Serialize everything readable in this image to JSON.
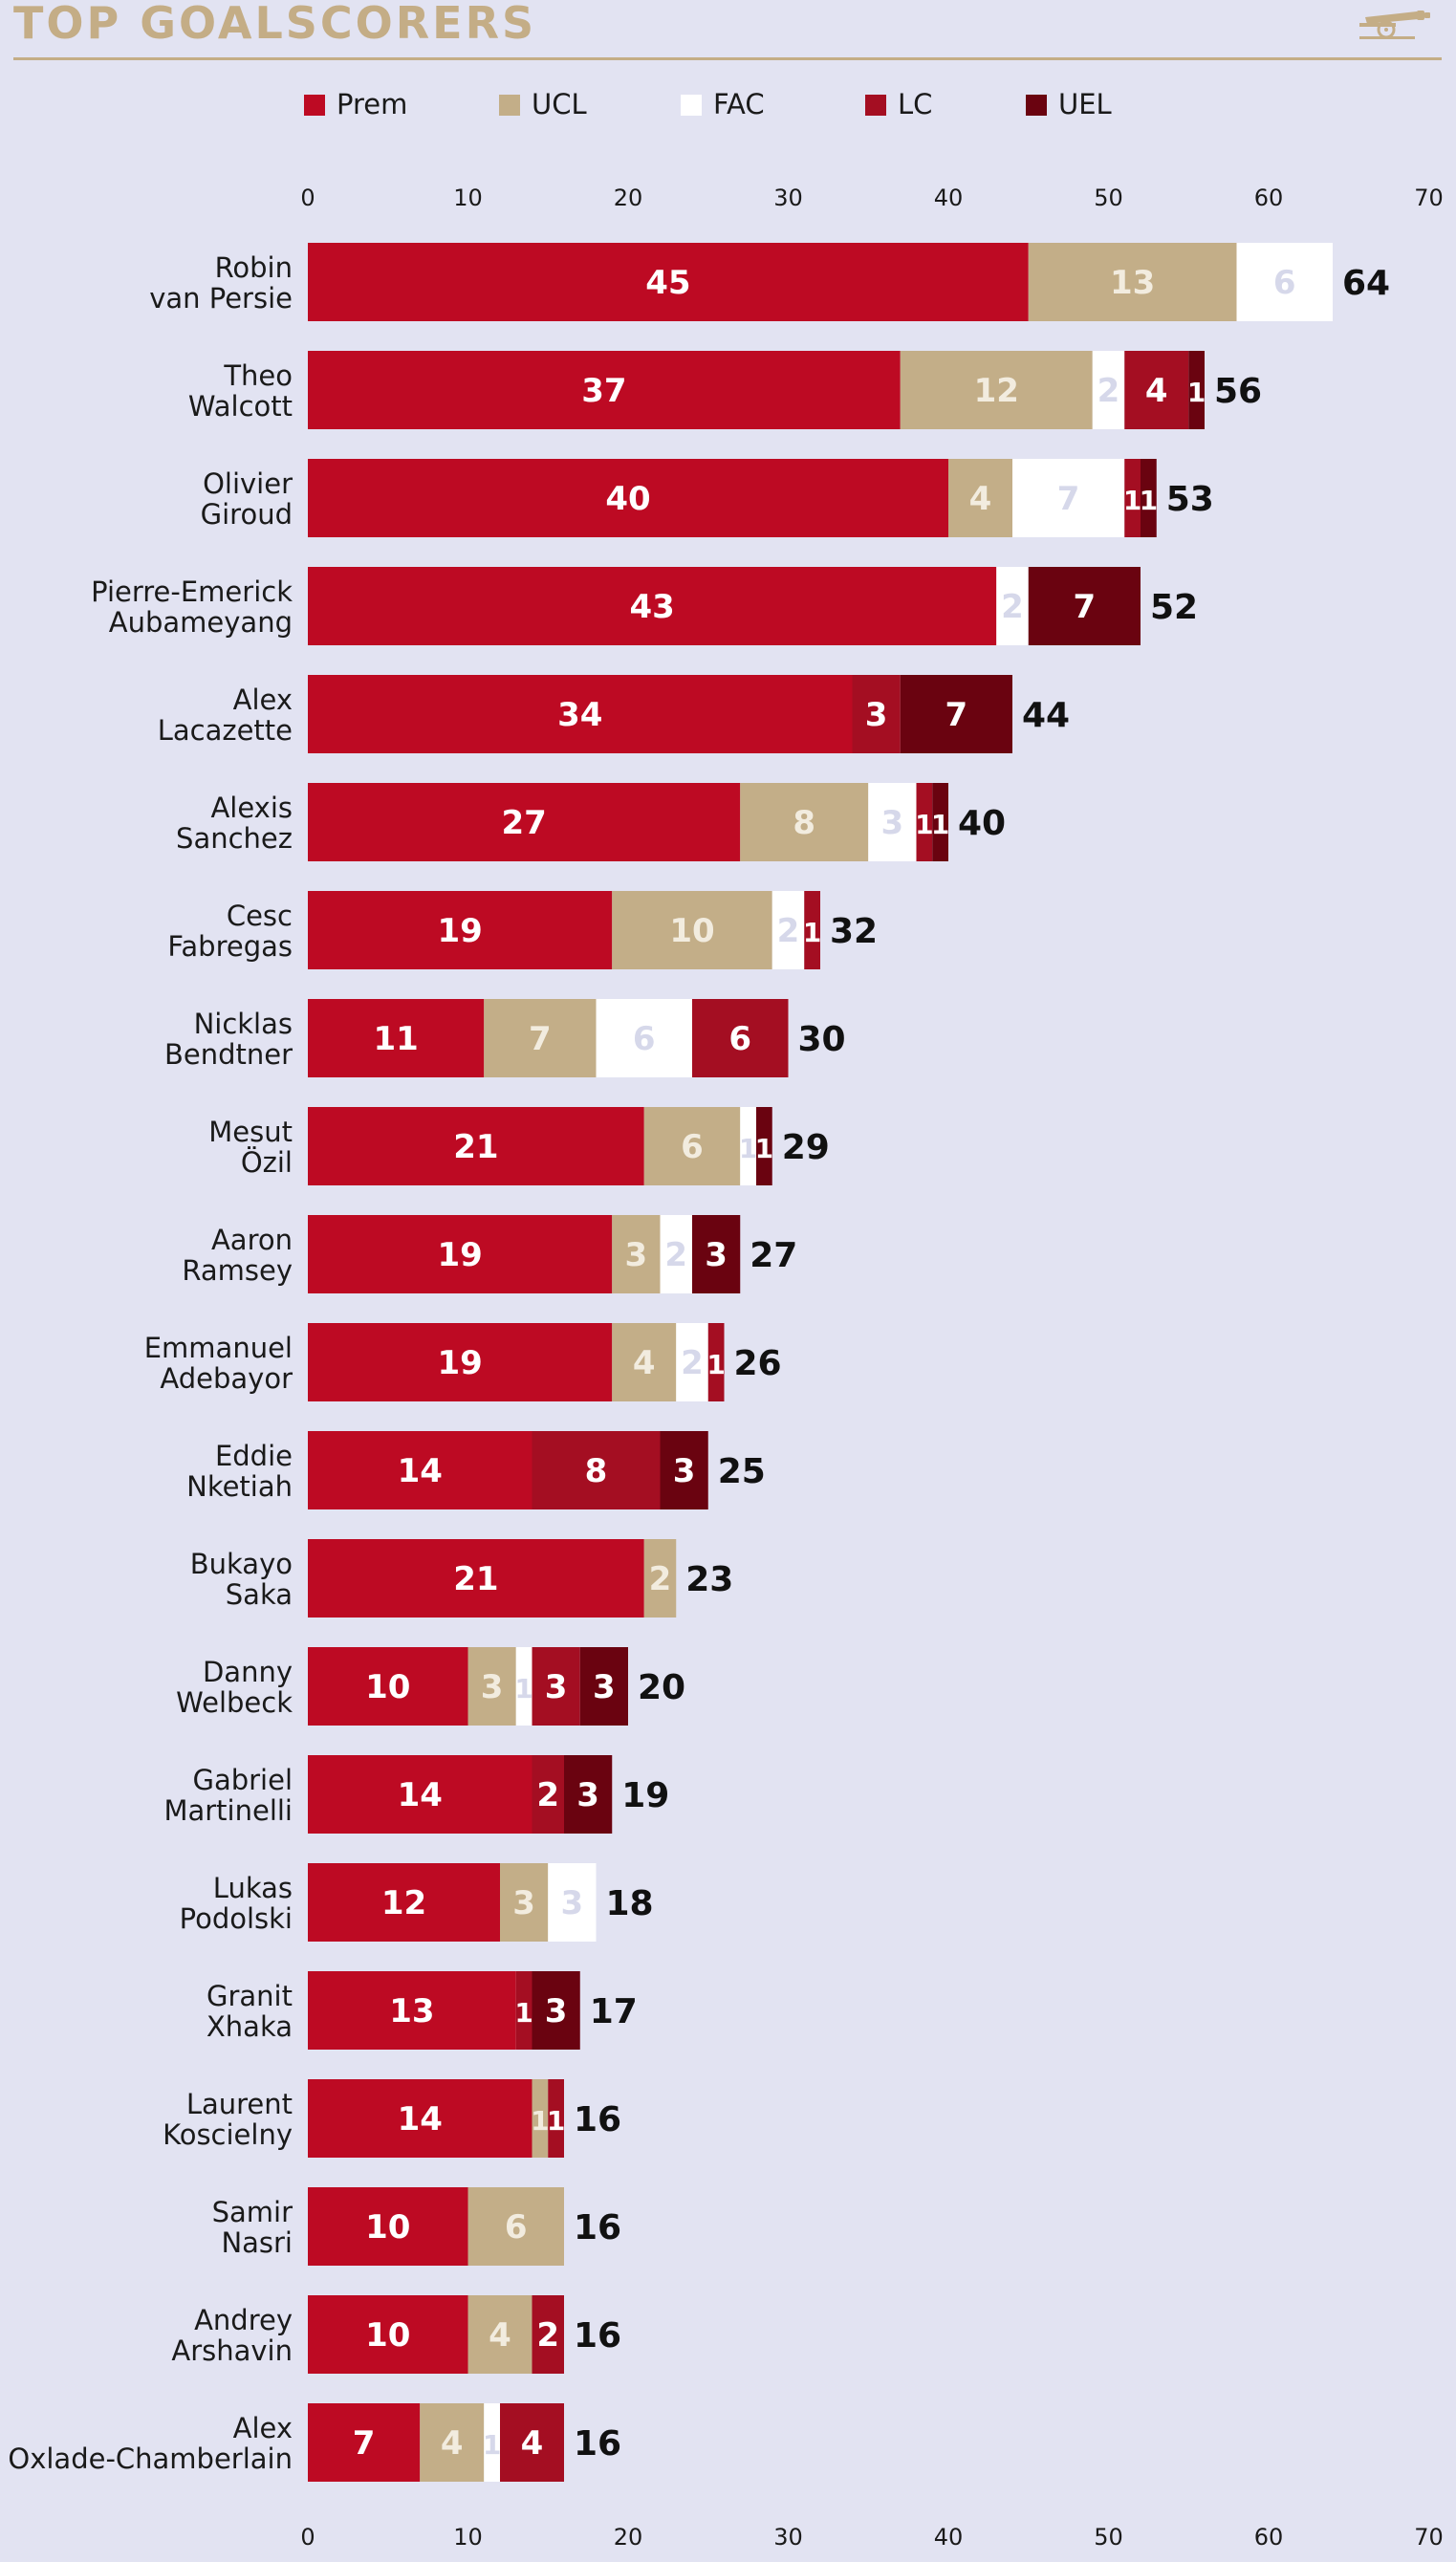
{
  "header": {
    "title": "TOP GOALSCORERS",
    "logo": "cannon-crest-icon"
  },
  "colors": {
    "Prem": "#bd0a23",
    "UCL": "#c3ae88",
    "FAC": "#ffffff",
    "LC": "#a40e22",
    "UEL": "#6a0310",
    "title": "#c4ad86",
    "background": "#e2e3f2"
  },
  "chart_data": {
    "type": "bar",
    "orientation": "horizontal",
    "stacked": true,
    "title": "TOP GOALSCORERS",
    "xlabel": "",
    "ylabel": "",
    "xlim": [
      0,
      70
    ],
    "xticks": [
      0,
      10,
      20,
      30,
      40,
      50,
      60,
      70
    ],
    "legend": {
      "placement": "top",
      "entries": [
        "Prem",
        "UCL",
        "FAC",
        "LC",
        "UEL"
      ]
    },
    "series_order": [
      "Prem",
      "UCL",
      "FAC",
      "LC",
      "UEL"
    ],
    "categories": [
      [
        "Robin",
        "van Persie"
      ],
      [
        "Theo",
        "Walcott"
      ],
      [
        "Olivier",
        "Giroud"
      ],
      [
        "Pierre-Emerick",
        "Aubameyang"
      ],
      [
        "Alex",
        "Lacazette"
      ],
      [
        "Alexis",
        "Sanchez"
      ],
      [
        "Cesc",
        "Fabregas"
      ],
      [
        "Nicklas",
        "Bendtner"
      ],
      [
        "Mesut",
        "Özil"
      ],
      [
        "Aaron",
        "Ramsey"
      ],
      [
        "Emmanuel",
        "Adebayor"
      ],
      [
        "Eddie",
        "Nketiah"
      ],
      [
        "Bukayo",
        "Saka"
      ],
      [
        "Danny",
        "Welbeck"
      ],
      [
        "Gabriel",
        "Martinelli"
      ],
      [
        "Lukas",
        "Podolski"
      ],
      [
        "Granit",
        "Xhaka"
      ],
      [
        "Laurent",
        "Koscielny"
      ],
      [
        "Samir",
        "Nasri"
      ],
      [
        "Andrey",
        "Arshavin"
      ],
      [
        "Alex",
        "Oxlade-Chamberlain"
      ]
    ],
    "series": [
      {
        "name": "Prem",
        "values": [
          45,
          37,
          40,
          43,
          34,
          27,
          19,
          11,
          21,
          19,
          19,
          14,
          21,
          10,
          14,
          12,
          13,
          14,
          10,
          10,
          7
        ]
      },
      {
        "name": "UCL",
        "values": [
          13,
          12,
          4,
          0,
          0,
          8,
          10,
          7,
          6,
          3,
          4,
          0,
          2,
          3,
          0,
          3,
          0,
          1,
          6,
          4,
          4
        ]
      },
      {
        "name": "FAC",
        "values": [
          6,
          2,
          7,
          2,
          0,
          3,
          2,
          6,
          1,
          2,
          2,
          0,
          0,
          1,
          0,
          3,
          0,
          0,
          0,
          0,
          1
        ]
      },
      {
        "name": "LC",
        "values": [
          0,
          4,
          1,
          0,
          3,
          1,
          1,
          6,
          0,
          0,
          1,
          8,
          0,
          3,
          2,
          0,
          1,
          1,
          0,
          2,
          4
        ]
      },
      {
        "name": "UEL",
        "values": [
          0,
          1,
          1,
          7,
          7,
          1,
          0,
          0,
          1,
          3,
          0,
          3,
          0,
          3,
          3,
          0,
          3,
          0,
          0,
          0,
          0
        ]
      }
    ],
    "totals": [
      64,
      56,
      53,
      52,
      44,
      40,
      32,
      30,
      29,
      27,
      26,
      25,
      23,
      20,
      19,
      18,
      17,
      16,
      16,
      16,
      16
    ]
  }
}
